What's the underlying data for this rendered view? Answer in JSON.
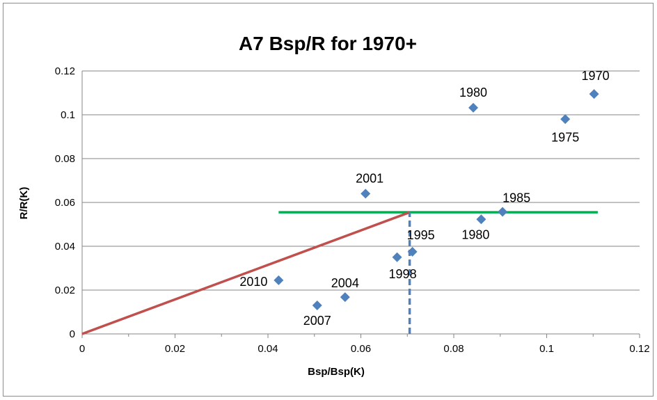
{
  "chart_data": {
    "type": "scatter",
    "title": "A7 Bsp/R for 1970+",
    "xlabel": "Bsp/Bsp(K)",
    "ylabel": "R/R(K)",
    "xlim": [
      0,
      0.12
    ],
    "ylim": [
      0,
      0.12
    ],
    "x_ticks": [
      "0",
      "0.02",
      "0.04",
      "0.06",
      "0.08",
      "0.1",
      "0.12"
    ],
    "y_ticks": [
      "0",
      "0.02",
      "0.04",
      "0.06",
      "0.08",
      "0.1",
      "0.12"
    ],
    "grid": "horizontal",
    "legend": "none",
    "marker_color": "#4f81bd",
    "points": [
      {
        "x": 0.1102,
        "y": 0.1095,
        "label": "1970"
      },
      {
        "x": 0.104,
        "y": 0.098,
        "label": "1975"
      },
      {
        "x": 0.0842,
        "y": 0.1032,
        "label": "1980"
      },
      {
        "x": 0.0859,
        "y": 0.0523,
        "label": "1980"
      },
      {
        "x": 0.0905,
        "y": 0.0557,
        "label": "1985"
      },
      {
        "x": 0.061,
        "y": 0.064,
        "label": "2001"
      },
      {
        "x": 0.0711,
        "y": 0.0375,
        "label": "1995"
      },
      {
        "x": 0.0678,
        "y": 0.035,
        "label": "1998"
      },
      {
        "x": 0.0423,
        "y": 0.0245,
        "label": "2010"
      },
      {
        "x": 0.0566,
        "y": 0.0168,
        "label": "2004"
      },
      {
        "x": 0.0506,
        "y": 0.013,
        "label": "2007"
      }
    ],
    "lines": [
      {
        "name": "horizontal-reference",
        "color": "#00b050",
        "style": "solid",
        "x": [
          0.0423,
          0.111
        ],
        "y": [
          0.0555,
          0.0555
        ]
      },
      {
        "name": "origin-line",
        "color": "#c0504d",
        "style": "solid",
        "x": [
          0,
          0.0705
        ],
        "y": [
          0,
          0.0555
        ]
      },
      {
        "name": "vertical-reference",
        "color": "#4f81bd",
        "style": "dashed",
        "x": [
          0.0705,
          0.0705
        ],
        "y": [
          0,
          0.0555
        ]
      }
    ]
  }
}
